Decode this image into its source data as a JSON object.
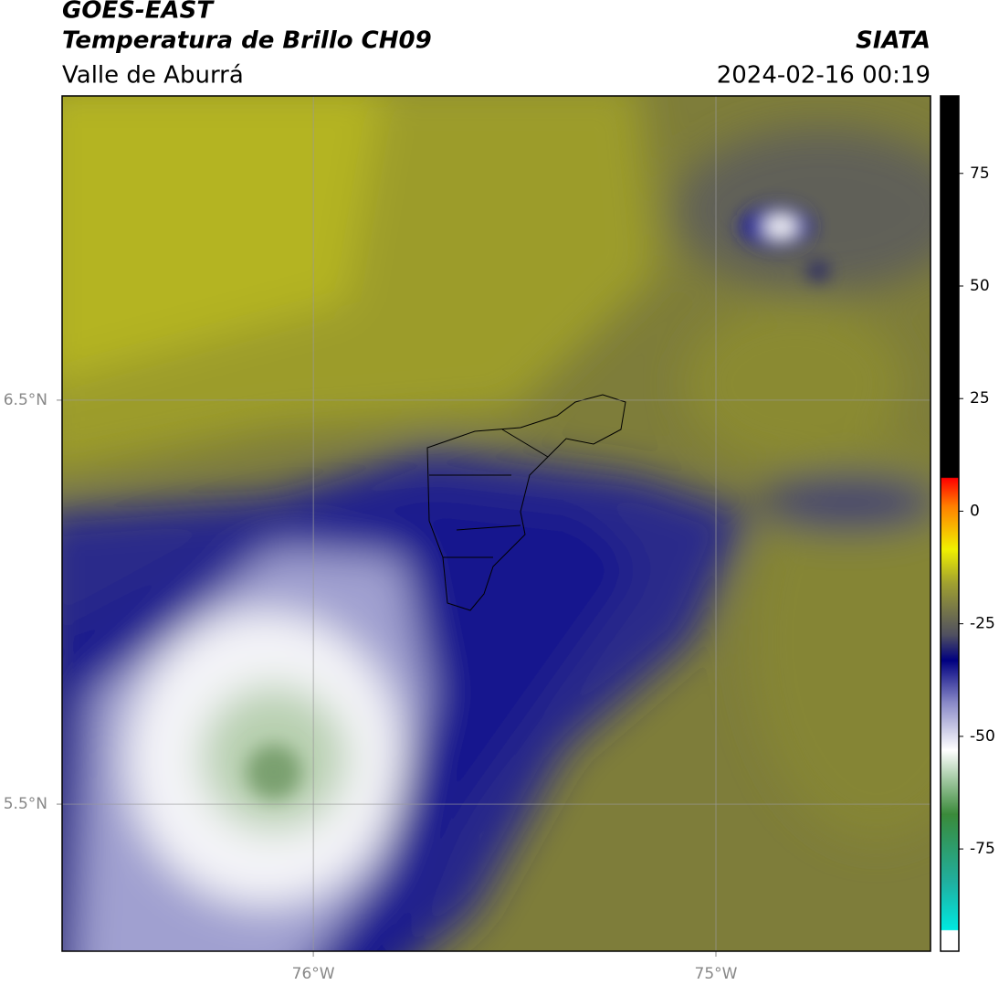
{
  "header": {
    "title": "GOES-EAST",
    "subtitle": "Temperatura de Brillo CH09",
    "region": "Valle de Aburrá",
    "source": "SIATA",
    "datetime": "2024-02-16 00:19"
  },
  "map": {
    "xlim": [
      -76.624,
      -74.467
    ],
    "ylim": [
      5.136,
      7.253
    ],
    "xticks": [
      {
        "value": -76,
        "label": "76°W"
      },
      {
        "value": -75,
        "label": "75°W"
      }
    ],
    "yticks": [
      {
        "value": 6.5,
        "label": "6.5°N"
      },
      {
        "value": 5.5,
        "label": "5.5°N"
      }
    ]
  },
  "colorbar": {
    "lim": [
      -97.7,
      92.2
    ],
    "ticks": [
      75,
      50,
      25,
      0,
      -25,
      -50,
      -75
    ]
  }
}
